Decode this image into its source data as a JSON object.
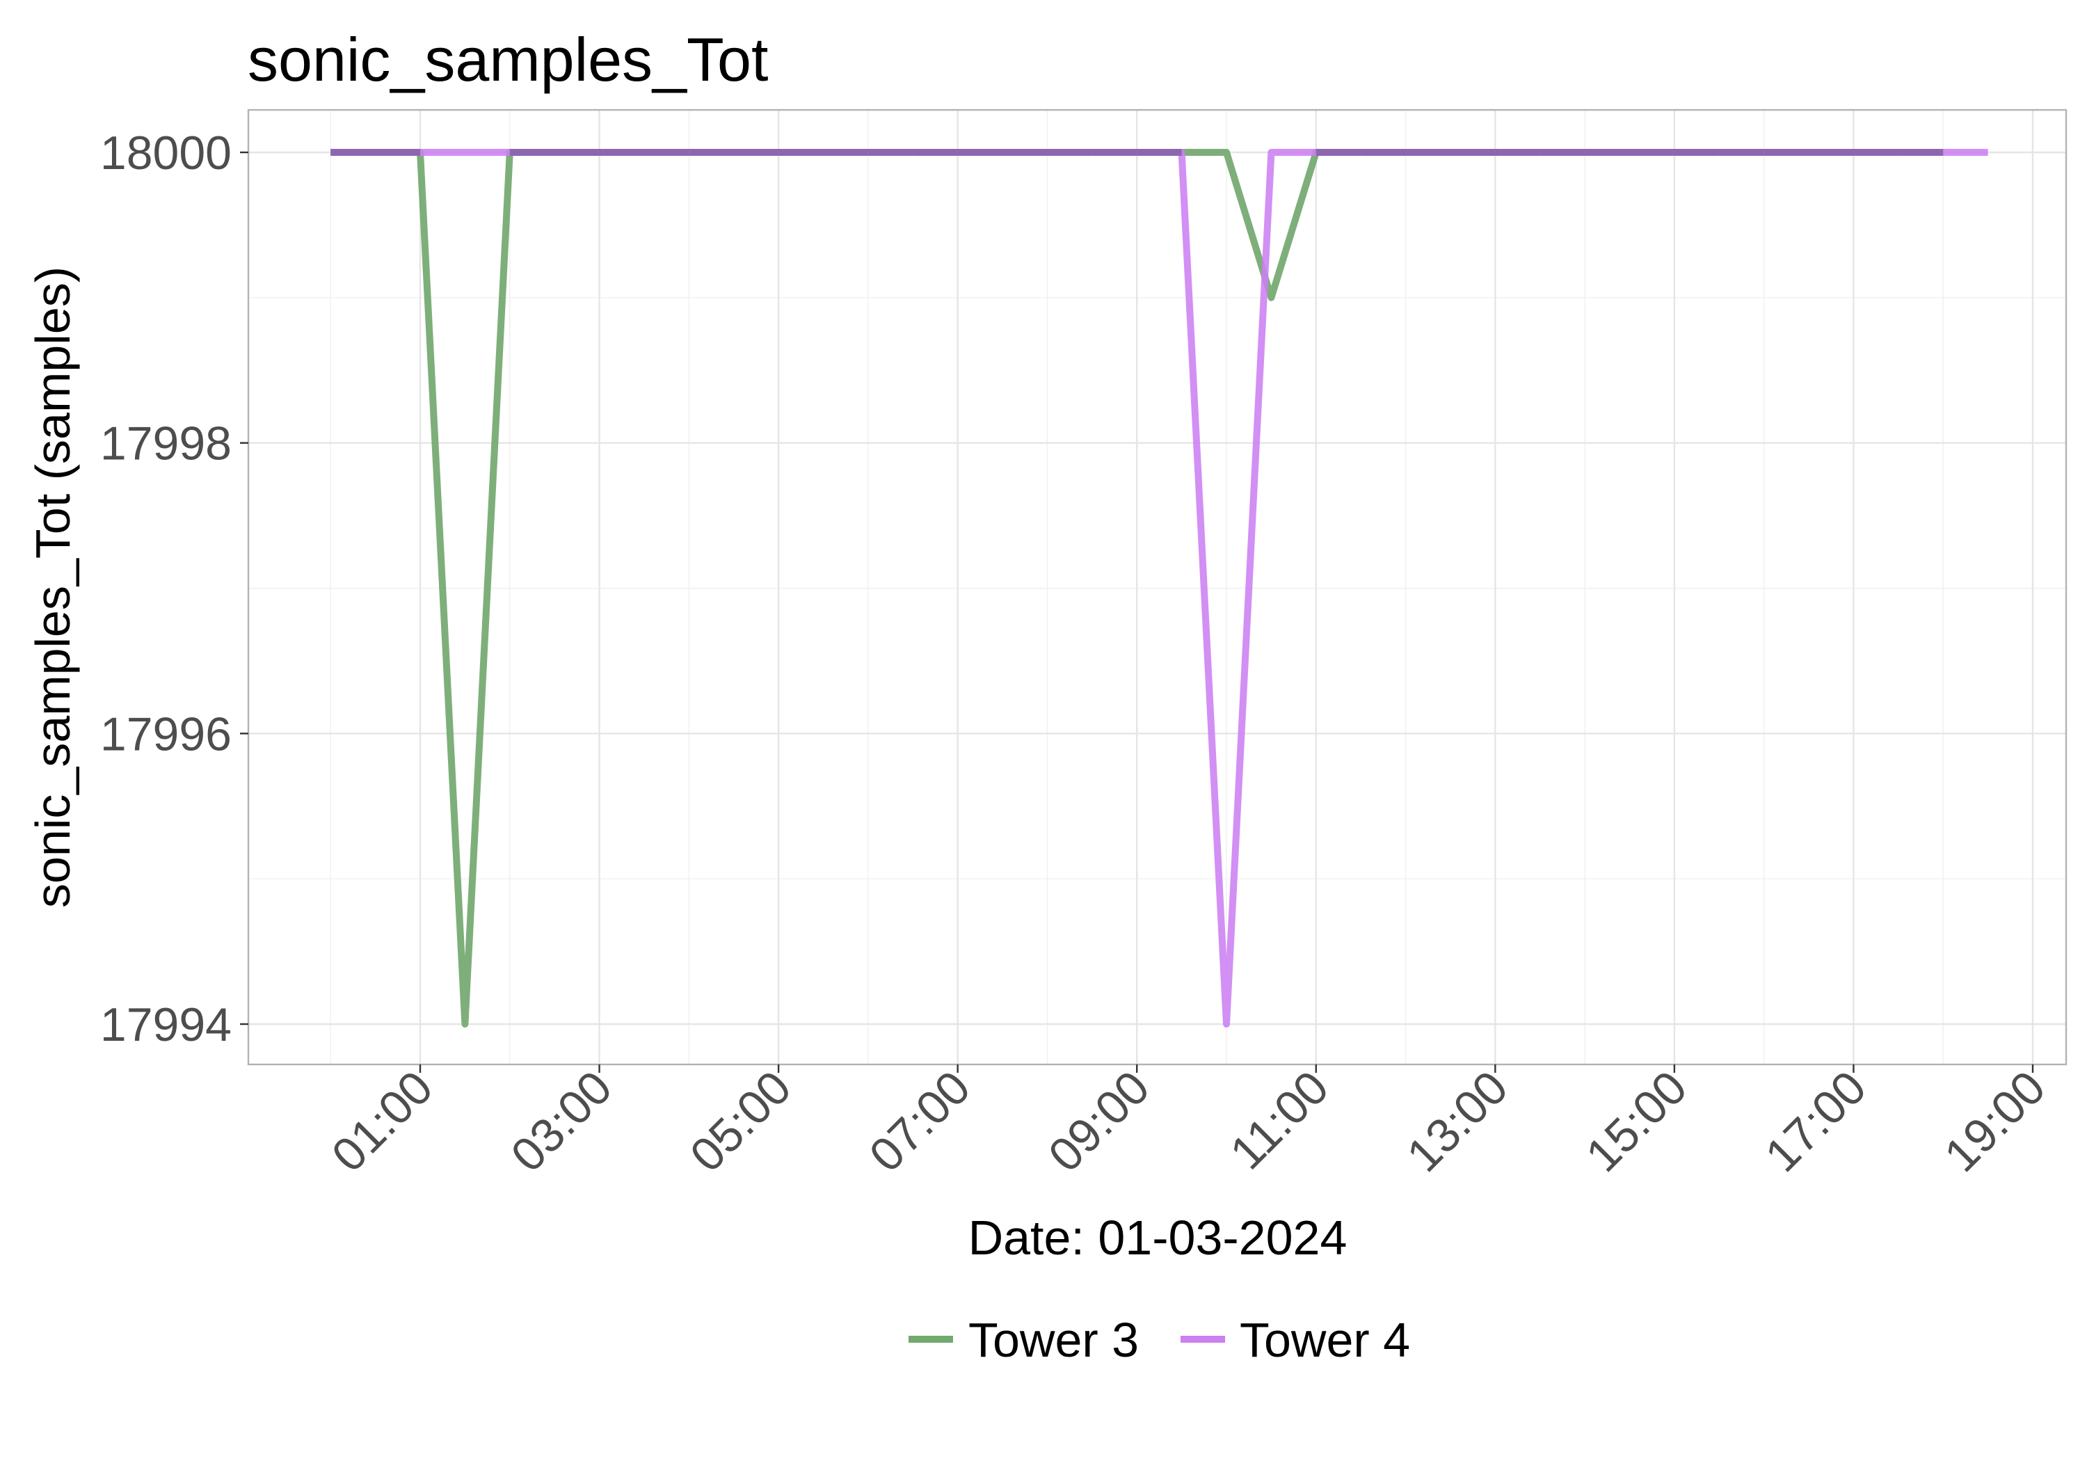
{
  "chart_data": {
    "type": "line",
    "title": "sonic_samples_Tot",
    "xlabel": "Date: 01-03-2024",
    "ylabel": "sonic_samples_Tot (samples)",
    "x_tick_labels": [
      "01:00",
      "03:00",
      "05:00",
      "07:00",
      "09:00",
      "11:00",
      "13:00",
      "15:00",
      "17:00",
      "19:00"
    ],
    "y_tick_labels": [
      "17994",
      "17996",
      "17998",
      "18000"
    ],
    "ylim": [
      17993.8,
      18000.3
    ],
    "xlim": [
      "2024-03-01T-00:01",
      "2024-03-01T19:00"
    ],
    "grid": true,
    "legend_position": "bottom",
    "series": [
      {
        "name": "Tower 3",
        "color": "#73a86f",
        "x": [
          "00:00",
          "00:30",
          "01:00",
          "01:30",
          "02:00",
          "02:30",
          "03:00",
          "03:30",
          "04:00",
          "04:30",
          "05:00",
          "05:30",
          "06:00",
          "06:30",
          "07:00",
          "07:30",
          "08:00",
          "08:30",
          "09:00",
          "09:30",
          "10:00",
          "10:30",
          "11:00",
          "11:30",
          "12:00",
          "12:30",
          "13:00",
          "13:30",
          "14:00",
          "14:30",
          "15:00",
          "15:30",
          "16:00",
          "16:30",
          "17:00",
          "17:30",
          "18:00"
        ],
        "y": [
          18000,
          18000,
          18000,
          17994,
          18000,
          18000,
          18000,
          18000,
          18000,
          18000,
          18000,
          18000,
          18000,
          18000,
          18000,
          18000,
          18000,
          18000,
          18000,
          18000,
          18000,
          17999,
          18000,
          18000,
          18000,
          18000,
          18000,
          18000,
          18000,
          18000,
          18000,
          18000,
          18000,
          18000,
          18000,
          18000,
          18000
        ]
      },
      {
        "name": "Tower 4",
        "color": "#cc80f2",
        "x": [
          "00:00",
          "00:30",
          "01:00",
          "01:30",
          "02:00",
          "02:30",
          "03:00",
          "03:30",
          "04:00",
          "04:30",
          "05:00",
          "05:30",
          "06:00",
          "06:30",
          "07:00",
          "07:30",
          "08:00",
          "08:30",
          "09:00",
          "09:30",
          "10:00",
          "10:30",
          "11:00",
          "11:30",
          "12:00",
          "12:30",
          "13:00",
          "13:30",
          "14:00",
          "14:30",
          "15:00",
          "15:30",
          "16:00",
          "16:30",
          "17:00",
          "17:30",
          "18:00",
          "18:30"
        ],
        "y": [
          18000,
          18000,
          18000,
          18000,
          18000,
          18000,
          18000,
          18000,
          18000,
          18000,
          18000,
          18000,
          18000,
          18000,
          18000,
          18000,
          18000,
          18000,
          18000,
          18000,
          17994,
          18000,
          18000,
          18000,
          18000,
          18000,
          18000,
          18000,
          18000,
          18000,
          18000,
          18000,
          18000,
          18000,
          18000,
          18000,
          18000,
          18000
        ]
      }
    ]
  }
}
